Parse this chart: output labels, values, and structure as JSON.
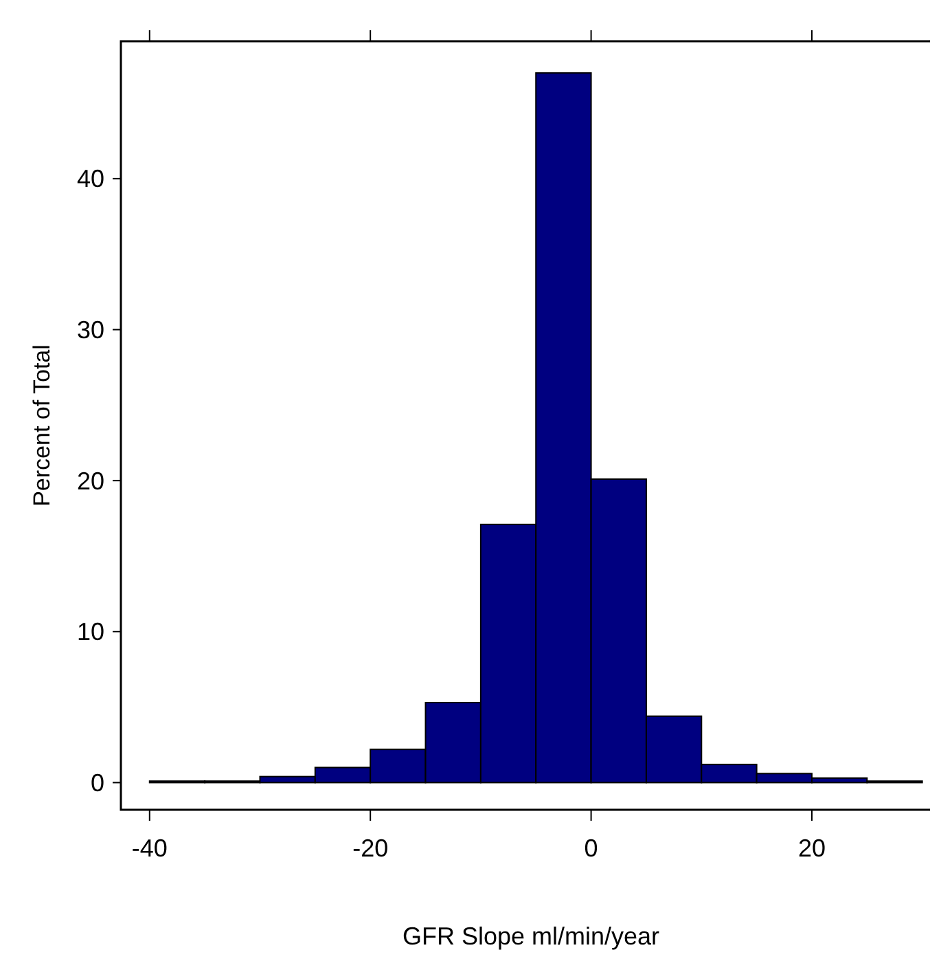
{
  "chart_data": {
    "type": "histogram",
    "xlabel": "GFR Slope ml/min/year",
    "ylabel": "Percent of Total",
    "bins": [
      -40,
      -35,
      -30,
      -25,
      -20,
      -15,
      -10,
      -5,
      0,
      5,
      10,
      15,
      20,
      25,
      30
    ],
    "values": [
      0.1,
      0.1,
      0.4,
      1.0,
      2.2,
      5.3,
      17.1,
      47.0,
      20.1,
      4.4,
      1.2,
      0.6,
      0.3,
      0.1
    ],
    "color": "#000080",
    "xlim": [
      -42.6,
      31.7
    ],
    "xticks": [
      -40,
      -20,
      0,
      20
    ],
    "ylim": [
      -1.8,
      49.1
    ],
    "yticks": [
      0,
      10,
      20,
      30,
      40
    ],
    "grid": false
  }
}
